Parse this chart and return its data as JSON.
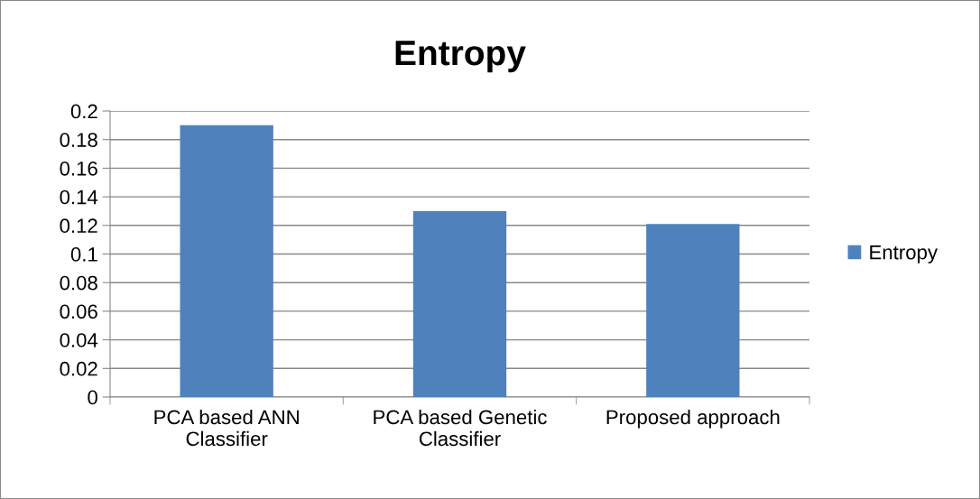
{
  "chart_data": {
    "type": "bar",
    "title": "Entropy",
    "categories": [
      "PCA based ANN\nClassifier",
      "PCA based Genetic\nClassifier",
      "Proposed approach"
    ],
    "series": [
      {
        "name": "Entropy",
        "color": "#4f81bd",
        "values": [
          0.19,
          0.13,
          0.121
        ]
      }
    ],
    "ylim": [
      0,
      0.2
    ],
    "yticks": [
      0,
      0.02,
      0.04,
      0.06,
      0.08,
      0.1,
      0.12,
      0.14,
      0.16,
      0.18,
      0.2
    ],
    "grid": "y",
    "legend": "right"
  }
}
